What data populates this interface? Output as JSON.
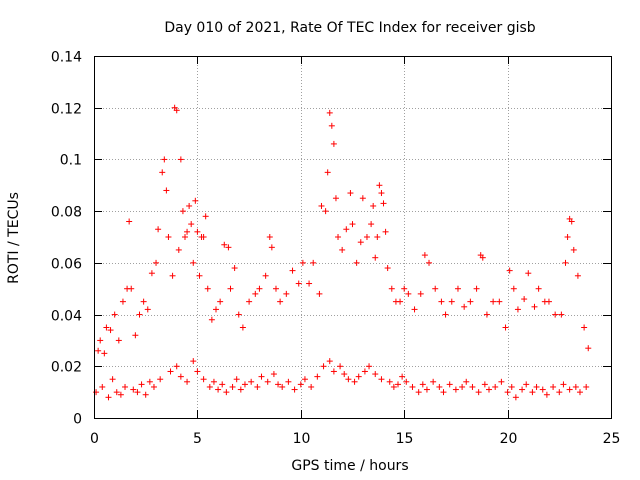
{
  "chart_data": {
    "type": "scatter",
    "title": "Day 010 of 2021, Rate Of TEC Index for receiver gisb",
    "xlabel": "GPS time / hours",
    "ylabel": "ROTI / TECUs",
    "xlim": [
      0,
      25
    ],
    "ylim": [
      0,
      0.14
    ],
    "xticks": [
      0,
      5,
      10,
      15,
      20,
      25
    ],
    "yticks": [
      0,
      0.02,
      0.04,
      0.06,
      0.08,
      0.1,
      0.12,
      0.14
    ],
    "xtick_labels": [
      "0",
      "5",
      "10",
      "15",
      "20",
      "25"
    ],
    "ytick_labels": [
      "0",
      "0.02",
      "0.04",
      "0.06",
      "0.08",
      "0.1",
      "0.12",
      "0.14"
    ],
    "grid": true,
    "marker": "plus",
    "color": "#ff0000",
    "series": [
      {
        "x": [
          0.2,
          0.3,
          0.5,
          0.6,
          0.8,
          1.0,
          1.2,
          1.4,
          1.6,
          1.7,
          1.8,
          2.0,
          2.2,
          2.4,
          2.6,
          2.8,
          3.0,
          3.1,
          3.3,
          3.4,
          3.5,
          3.6,
          3.8,
          3.9,
          4.0,
          4.1,
          4.2,
          4.3,
          4.4,
          4.5,
          4.6,
          4.7,
          4.8,
          4.9,
          5.0,
          5.1,
          5.2,
          5.3,
          5.4,
          5.5,
          5.7,
          5.9,
          6.1,
          6.3,
          6.5,
          6.6,
          6.8,
          7.0,
          7.2,
          7.5,
          7.8,
          8.0,
          8.3,
          8.5,
          8.6,
          8.8,
          9.0,
          9.3,
          9.6,
          9.9,
          10.1,
          10.4,
          10.6,
          10.9,
          11.0,
          11.2,
          11.3,
          11.4,
          11.5,
          11.6,
          11.7,
          11.8,
          12.0,
          12.2,
          12.4,
          12.5,
          12.7,
          12.9,
          13.0,
          13.2,
          13.4,
          13.5,
          13.6,
          13.7,
          13.8,
          13.9,
          14.0,
          14.1,
          14.2,
          14.4,
          14.6,
          14.8,
          15.0,
          15.2,
          15.5,
          15.8,
          16.0,
          16.2,
          16.5,
          16.8,
          17.0,
          17.3,
          17.6,
          17.9,
          18.2,
          18.5,
          18.7,
          18.8,
          19.0,
          19.3,
          19.6,
          19.9,
          20.1,
          20.3,
          20.5,
          20.8,
          21.0,
          21.3,
          21.5,
          21.8,
          22.0,
          22.3,
          22.6,
          22.8,
          22.9,
          23.0,
          23.1,
          23.2,
          23.4,
          23.7,
          23.9
        ],
        "y": [
          0.026,
          0.03,
          0.025,
          0.035,
          0.034,
          0.04,
          0.03,
          0.045,
          0.05,
          0.076,
          0.05,
          0.032,
          0.04,
          0.045,
          0.042,
          0.056,
          0.06,
          0.073,
          0.095,
          0.1,
          0.088,
          0.07,
          0.055,
          0.12,
          0.119,
          0.065,
          0.1,
          0.08,
          0.07,
          0.072,
          0.082,
          0.075,
          0.06,
          0.084,
          0.072,
          0.055,
          0.07,
          0.07,
          0.078,
          0.05,
          0.038,
          0.042,
          0.045,
          0.067,
          0.066,
          0.05,
          0.058,
          0.04,
          0.035,
          0.045,
          0.048,
          0.05,
          0.055,
          0.07,
          0.066,
          0.05,
          0.045,
          0.048,
          0.057,
          0.052,
          0.06,
          0.052,
          0.06,
          0.048,
          0.082,
          0.08,
          0.095,
          0.118,
          0.113,
          0.106,
          0.085,
          0.07,
          0.065,
          0.073,
          0.087,
          0.075,
          0.06,
          0.068,
          0.085,
          0.07,
          0.075,
          0.082,
          0.062,
          0.07,
          0.09,
          0.087,
          0.083,
          0.072,
          0.058,
          0.05,
          0.045,
          0.045,
          0.05,
          0.048,
          0.042,
          0.048,
          0.063,
          0.06,
          0.05,
          0.045,
          0.04,
          0.045,
          0.05,
          0.043,
          0.045,
          0.05,
          0.063,
          0.062,
          0.04,
          0.045,
          0.045,
          0.035,
          0.057,
          0.05,
          0.042,
          0.046,
          0.056,
          0.043,
          0.05,
          0.045,
          0.045,
          0.04,
          0.04,
          0.06,
          0.07,
          0.077,
          0.076,
          0.065,
          0.055,
          0.035,
          0.027
        ]
      },
      {
        "x": [
          0.1,
          0.4,
          0.7,
          0.9,
          1.1,
          1.3,
          1.5,
          1.9,
          2.1,
          2.3,
          2.5,
          2.7,
          2.9,
          3.2,
          3.7,
          4.0,
          4.2,
          4.5,
          4.8,
          5.0,
          5.3,
          5.6,
          5.8,
          6.0,
          6.2,
          6.4,
          6.7,
          6.9,
          7.1,
          7.3,
          7.6,
          7.9,
          8.1,
          8.4,
          8.7,
          8.9,
          9.1,
          9.4,
          9.7,
          10.0,
          10.2,
          10.5,
          10.8,
          11.1,
          11.4,
          11.6,
          11.9,
          12.1,
          12.3,
          12.6,
          12.8,
          13.1,
          13.3,
          13.6,
          13.9,
          14.3,
          14.5,
          14.7,
          14.9,
          15.1,
          15.4,
          15.7,
          15.9,
          16.1,
          16.4,
          16.7,
          16.9,
          17.2,
          17.5,
          17.8,
          18.0,
          18.3,
          18.6,
          18.9,
          19.1,
          19.4,
          19.7,
          20.0,
          20.2,
          20.4,
          20.7,
          20.9,
          21.2,
          21.4,
          21.7,
          21.9,
          22.2,
          22.5,
          22.7,
          23.0,
          23.3,
          23.5,
          23.8
        ],
        "y": [
          0.01,
          0.012,
          0.008,
          0.015,
          0.01,
          0.009,
          0.012,
          0.011,
          0.01,
          0.013,
          0.009,
          0.014,
          0.012,
          0.015,
          0.018,
          0.02,
          0.016,
          0.014,
          0.022,
          0.018,
          0.015,
          0.012,
          0.014,
          0.011,
          0.013,
          0.01,
          0.012,
          0.015,
          0.011,
          0.013,
          0.014,
          0.012,
          0.016,
          0.014,
          0.017,
          0.013,
          0.012,
          0.014,
          0.011,
          0.013,
          0.015,
          0.012,
          0.016,
          0.02,
          0.022,
          0.018,
          0.02,
          0.017,
          0.015,
          0.014,
          0.016,
          0.018,
          0.02,
          0.017,
          0.015,
          0.014,
          0.012,
          0.013,
          0.016,
          0.014,
          0.012,
          0.01,
          0.013,
          0.011,
          0.014,
          0.012,
          0.01,
          0.013,
          0.011,
          0.012,
          0.014,
          0.012,
          0.01,
          0.013,
          0.011,
          0.012,
          0.014,
          0.01,
          0.012,
          0.008,
          0.011,
          0.013,
          0.01,
          0.012,
          0.011,
          0.009,
          0.012,
          0.01,
          0.013,
          0.011,
          0.012,
          0.01,
          0.012
        ]
      }
    ]
  }
}
